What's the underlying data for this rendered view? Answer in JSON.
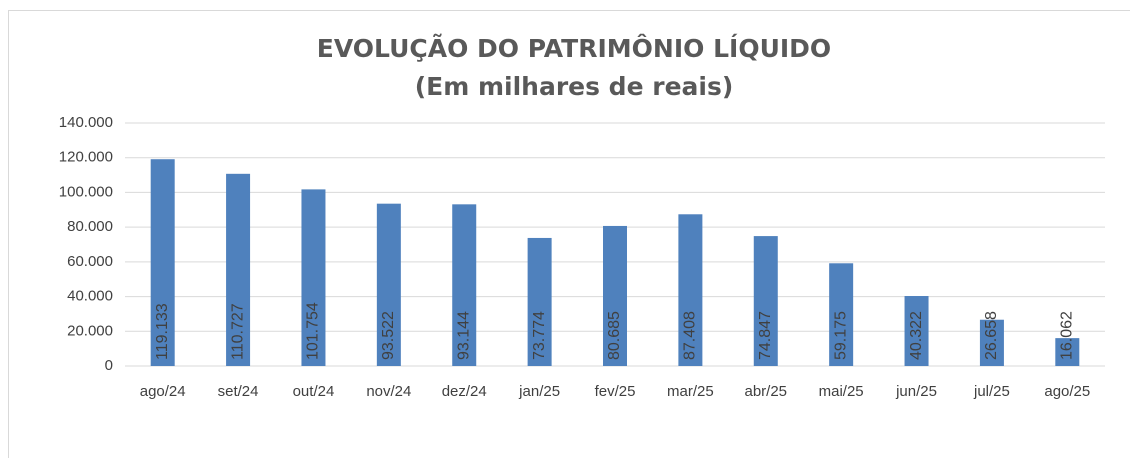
{
  "chart_data": {
    "type": "bar",
    "title": "EVOLUÇÃO DO PATRIMÔNIO LÍQUIDO",
    "subtitle": "(Em milhares de reais)",
    "categories": [
      "ago/24",
      "set/24",
      "out/24",
      "nov/24",
      "dez/24",
      "jan/25",
      "fev/25",
      "mar/25",
      "abr/25",
      "mai/25",
      "jun/25",
      "jul/25",
      "ago/25"
    ],
    "values": [
      119133,
      110727,
      101754,
      93522,
      93144,
      73774,
      80685,
      87408,
      74847,
      59175,
      40322,
      26658,
      16062
    ],
    "value_labels": [
      "119.133",
      "110.727",
      "101.754",
      "93.522",
      "93.144",
      "73.774",
      "80.685",
      "87.408",
      "74.847",
      "59.175",
      "40.322",
      "26.658",
      "16.062"
    ],
    "color": "#4f81bd",
    "ylim": [
      0,
      140000
    ],
    "yticks": [
      0,
      {
        "value": 20000,
        "label": "20.000"
      },
      {
        "value": 40000,
        "label": "40.000"
      },
      {
        "value": 60000,
        "label": "60.000"
      },
      {
        "value": 80000,
        "label": "80.000"
      },
      {
        "value": 100000,
        "label": "100.000"
      },
      {
        "value": 120000,
        "label": "120.000"
      },
      {
        "value": 140000,
        "label": "140.000"
      }
    ],
    "grid": true
  }
}
